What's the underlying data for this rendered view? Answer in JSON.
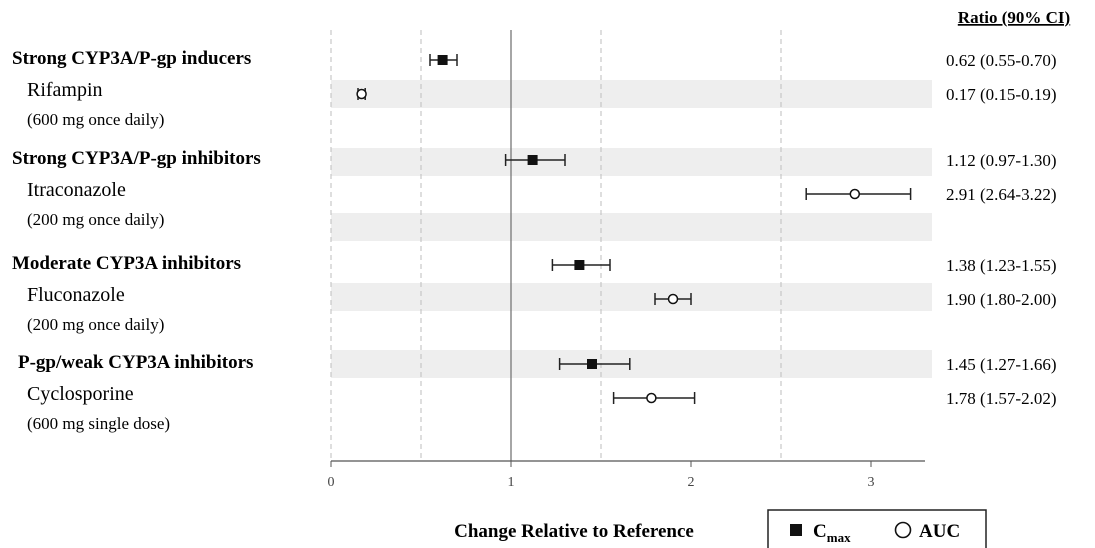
{
  "chart_data": {
    "type": "forest",
    "xlabel": "Change Relative to Reference",
    "xlim": [
      0,
      3.3
    ],
    "x_ticks": [
      "0",
      "1",
      "2",
      "3"
    ],
    "reference_line": 1,
    "dashed_gridlines": [
      0,
      0.5,
      1.5,
      2.5
    ],
    "ratio_header": "Ratio (90% CI)",
    "legend": {
      "cmax_main": "C",
      "cmax_sub": "max",
      "auc": "AUC"
    },
    "groups": [
      {
        "title": "Strong CYP3A/P-gp inducers",
        "drug": "Rifampin",
        "dose": "(600 mg once daily)",
        "rows": [
          {
            "metric": "Cmax",
            "estimate": 0.62,
            "lo": 0.55,
            "hi": 0.7,
            "label": "0.62 (0.55-0.70)"
          },
          {
            "metric": "AUC",
            "estimate": 0.17,
            "lo": 0.15,
            "hi": 0.19,
            "label": "0.17 (0.15-0.19)"
          }
        ]
      },
      {
        "title": "Strong CYP3A/P-gp inhibitors",
        "drug": "Itraconazole",
        "dose": "(200 mg once daily)",
        "rows": [
          {
            "metric": "Cmax",
            "estimate": 1.12,
            "lo": 0.97,
            "hi": 1.3,
            "label": "1.12 (0.97-1.30)"
          },
          {
            "metric": "AUC",
            "estimate": 2.91,
            "lo": 2.64,
            "hi": 3.22,
            "label": "2.91 (2.64-3.22)"
          }
        ]
      },
      {
        "title": "Moderate CYP3A inhibitors",
        "drug": "Fluconazole",
        "dose": "(200 mg once daily)",
        "rows": [
          {
            "metric": "Cmax",
            "estimate": 1.38,
            "lo": 1.23,
            "hi": 1.55,
            "label": "1.38 (1.23-1.55)"
          },
          {
            "metric": "AUC",
            "estimate": 1.9,
            "lo": 1.8,
            "hi": 2.0,
            "label": "1.90 (1.80-2.00)"
          }
        ]
      },
      {
        "title": "P-gp/weak CYP3A inhibitors",
        "drug": "Cyclosporine",
        "dose": "(600 mg single dose)",
        "rows": [
          {
            "metric": "Cmax",
            "estimate": 1.45,
            "lo": 1.27,
            "hi": 1.66,
            "label": "1.45 (1.27-1.66)"
          },
          {
            "metric": "AUC",
            "estimate": 1.78,
            "lo": 1.57,
            "hi": 2.02,
            "label": "1.78 (1.57-2.02)"
          }
        ]
      }
    ]
  }
}
